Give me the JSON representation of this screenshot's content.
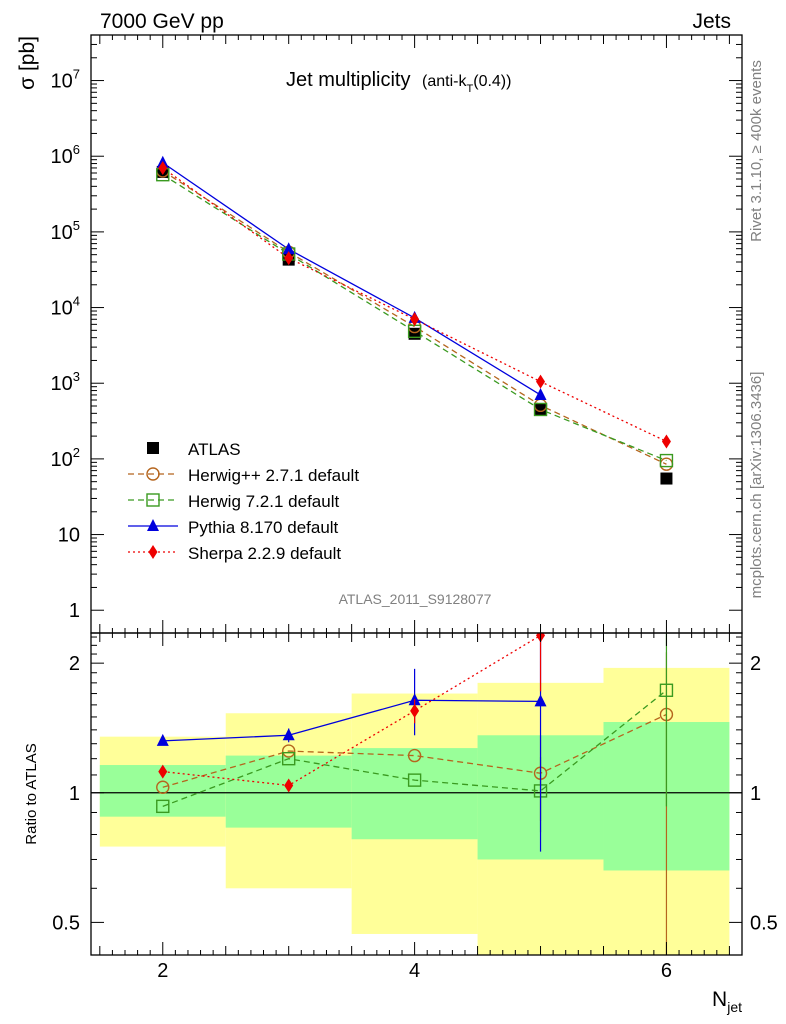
{
  "header": {
    "left": "7000 GeV pp",
    "right": "Jets"
  },
  "side_text": {
    "rivet": "Rivet 3.1.10, ≥ 400k events",
    "mcplots": "mcplots.cern.ch [arXiv:1306.3436]"
  },
  "chart_data": [
    {
      "type": "scatter",
      "title": "Jet multiplicity",
      "title_suffix": "(anti-k",
      "title_sub": "T",
      "title_end": "(0.4))",
      "ylabel": "σ [pb]",
      "analysis_label": "ATLAS_2011_S9128077",
      "yscale": "log",
      "xlim": [
        1.43,
        6.6
      ],
      "ylim": [
        0.5,
        40000000.0
      ],
      "x": [
        2,
        3,
        4,
        5,
        6
      ],
      "x_ticks": [
        "2",
        "4",
        "6"
      ],
      "y_ticks": [
        "1",
        "10",
        "10^2",
        "10^3",
        "10^4",
        "10^5",
        "10^6",
        "10^7"
      ],
      "series": [
        {
          "name": "ATLAS",
          "color": "#000000",
          "marker": "square-filled",
          "line": "none",
          "values": [
            620000,
            43000,
            4500,
            450,
            55
          ]
        },
        {
          "name": "Herwig++ 2.7.1 default",
          "color": "#b5651d",
          "marker": "circle-open",
          "line": "dashed",
          "values": [
            640000,
            54000,
            5600,
            510,
            85
          ]
        },
        {
          "name": "Herwig 7.2.1 default",
          "color": "#3a9a20",
          "marker": "square-open",
          "line": "dashed",
          "values": [
            570000,
            51000,
            4850,
            450,
            95
          ]
        },
        {
          "name": "Pythia 8.170 default",
          "color": "#0000dd",
          "marker": "triangle-filled",
          "line": "solid",
          "values": [
            820000,
            59000,
            7300,
            700,
            null
          ]
        },
        {
          "name": "Sherpa 2.2.9 default",
          "color": "#ee0000",
          "marker": "diamond-filled",
          "line": "dotted",
          "values": [
            700000,
            45000,
            7000,
            1050,
            170
          ]
        }
      ]
    },
    {
      "type": "scatter",
      "ylabel": "Ratio to ATLAS",
      "xlabel": "N",
      "xlabel_sub": "jet",
      "yscale": "log",
      "ylim": [
        0.42,
        2.35
      ],
      "y_ticks": [
        "0.5",
        "1",
        "2"
      ],
      "bins": [
        [
          1.5,
          2.5
        ],
        [
          2.5,
          3.5
        ],
        [
          3.5,
          4.5
        ],
        [
          4.5,
          5.5
        ],
        [
          5.5,
          6.5
        ]
      ],
      "band_inner": [
        [
          0.88,
          1.16
        ],
        [
          0.83,
          1.22
        ],
        [
          0.78,
          1.27
        ],
        [
          0.7,
          1.36
        ],
        [
          0.66,
          1.46
        ]
      ],
      "band_outer": [
        [
          0.75,
          1.35
        ],
        [
          0.6,
          1.53
        ],
        [
          0.47,
          1.7
        ],
        [
          0.38,
          1.8
        ],
        [
          0.38,
          1.95
        ]
      ],
      "series": [
        {
          "name": "Herwig++ 2.7.1 default",
          "color": "#b5651d",
          "values": [
            1.03,
            1.25,
            1.22,
            1.11,
            1.52
          ]
        },
        {
          "name": "Herwig 7.2.1 default",
          "color": "#3a9a20",
          "values": [
            0.93,
            1.2,
            1.07,
            1.01,
            1.73
          ]
        },
        {
          "name": "Pythia 8.170 default",
          "color": "#0000dd",
          "values": [
            1.32,
            1.36,
            1.64,
            1.63,
            null
          ]
        },
        {
          "name": "Sherpa 2.2.9 default",
          "color": "#ee0000",
          "values": [
            1.12,
            1.04,
            1.55,
            2.32,
            null
          ]
        }
      ]
    }
  ]
}
